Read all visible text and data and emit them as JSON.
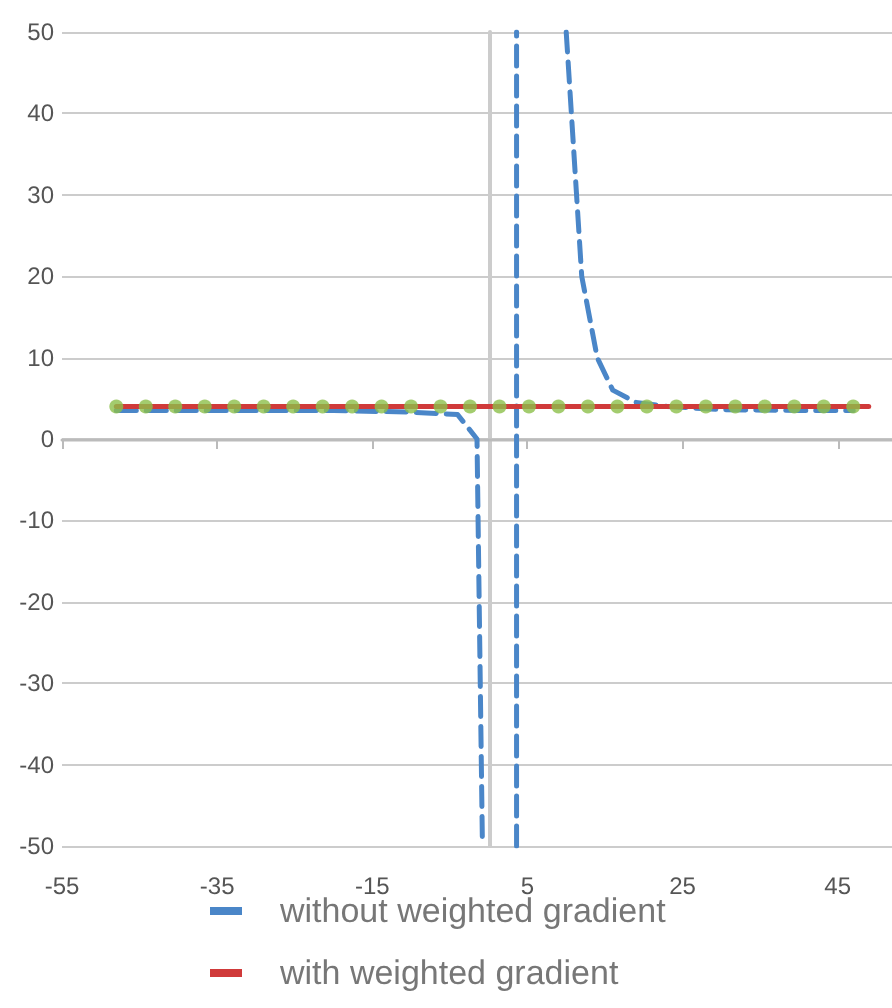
{
  "chart_data": {
    "type": "line",
    "xlim": [
      -55,
      52
    ],
    "xticks": [
      -55,
      -35,
      -15,
      5,
      25,
      45
    ],
    "ylim": [
      -50,
      50
    ],
    "yticks": [
      -50,
      -40,
      -30,
      -20,
      -10,
      0,
      10,
      20,
      30,
      40,
      50
    ],
    "grid": "y",
    "legend": "bottom",
    "series": [
      {
        "name": "without weighted gradient",
        "color": "#4a86c8",
        "line_style": "dashed",
        "marker": "none",
        "x": [
          -48,
          -40,
          -30,
          -20,
          -10,
          -4,
          -1.5,
          -0.8,
          null,
          3.6,
          3.6,
          null,
          10,
          12,
          14,
          16,
          19,
          23,
          30,
          40,
          47
        ],
        "values": [
          3.5,
          3.5,
          3.5,
          3.5,
          3.3,
          3,
          0,
          -50,
          null,
          -50,
          50,
          null,
          50,
          20,
          10,
          6,
          4.5,
          4,
          3.6,
          3.5,
          3.5
        ]
      },
      {
        "name": "with weighted gradient",
        "color": "#d03a3a",
        "line_style": "solid",
        "marker": "none",
        "x": [
          -48,
          49
        ],
        "values": [
          4,
          4
        ]
      },
      {
        "type": "scatter",
        "color": "#8cbf4a",
        "marker": "circle",
        "x": [
          -48,
          -44.2,
          -40.4,
          -36.6,
          -32.8,
          -29,
          -25.2,
          -21.4,
          -17.6,
          -13.8,
          -10,
          -6.2,
          -2.4,
          1.4,
          5.2,
          9,
          12.8,
          16.6,
          20.4,
          24.2,
          28,
          31.8,
          35.6,
          39.4,
          43.2,
          47
        ],
        "values": [
          4,
          4,
          4,
          4,
          4,
          4,
          4,
          4,
          4,
          4,
          4,
          4,
          4,
          4,
          4,
          4,
          4,
          4,
          4,
          4,
          4,
          4,
          4,
          4,
          4,
          4
        ]
      }
    ]
  }
}
